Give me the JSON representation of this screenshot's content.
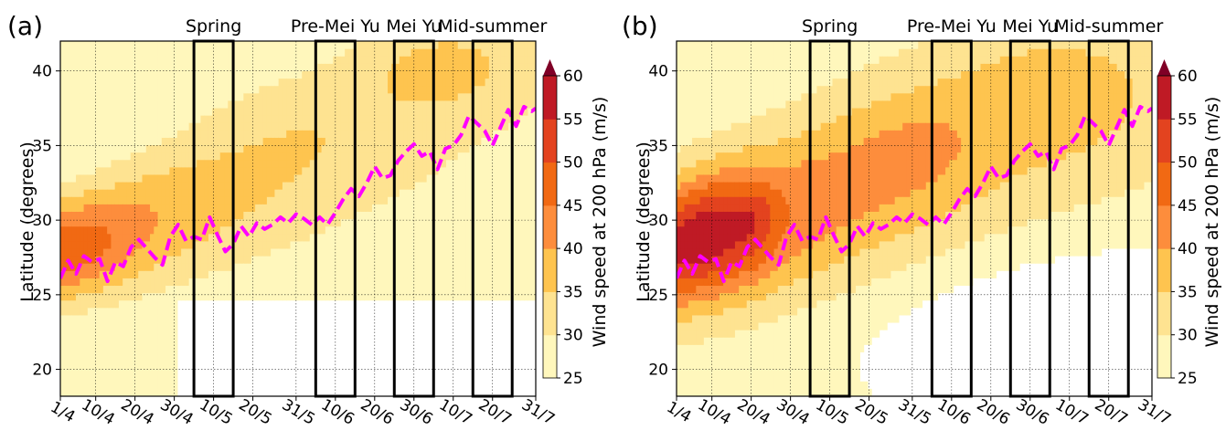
{
  "chart_data": [
    {
      "panel_label": "(a)",
      "type": "heatmap",
      "title": "",
      "xlabel": "",
      "ylabel": "Latitude (degrees)",
      "x_ticks": [
        "1/4",
        "10/4",
        "20/4",
        "30/4",
        "10/5",
        "20/5",
        "31/5",
        "10/6",
        "20/6",
        "30/6",
        "10/7",
        "20/7",
        "31/7"
      ],
      "x_tick_days": [
        0,
        9,
        19,
        29,
        39,
        49,
        60,
        70,
        80,
        90,
        100,
        110,
        121
      ],
      "xlim": [
        0,
        121
      ],
      "y_ticks": [
        20,
        25,
        30,
        35,
        40
      ],
      "ylim": [
        18.2,
        42
      ],
      "grid": true,
      "colorbar": {
        "label": "Wind speed at 200 hPa (m/s)",
        "levels": [
          25,
          30,
          35,
          40,
          45,
          50,
          55,
          60
        ],
        "colors": [
          "#fff7bc",
          "#fee391",
          "#fec44f",
          "#fd8d3c",
          "#f16913",
          "#e3431f",
          "#bf1a25",
          "#800026"
        ],
        "extend": "max"
      },
      "periods": [
        {
          "label": "Spring",
          "start_day": 34,
          "end_day": 44
        },
        {
          "label": "Pre-Mei Yu",
          "start_day": 65,
          "end_day": 75
        },
        {
          "label": "Mei Yu",
          "start_day": 85,
          "end_day": 95
        },
        {
          "label": "Mid-summer",
          "start_day": 105,
          "end_day": 115
        }
      ],
      "jet_axis": {
        "name": "",
        "color": "#ff00ff",
        "days": [
          0,
          2,
          4,
          6,
          8,
          10,
          12,
          14,
          16,
          18,
          20,
          22,
          24,
          26,
          28,
          30,
          32,
          34,
          36,
          38,
          40,
          42,
          44,
          46,
          48,
          50,
          52,
          54,
          56,
          58,
          60,
          62,
          64,
          66,
          68,
          70,
          72,
          74,
          76,
          78,
          80,
          82,
          84,
          86,
          88,
          90,
          92,
          94,
          96,
          98,
          100,
          102,
          104,
          106,
          108,
          110,
          112,
          114,
          116,
          118,
          120,
          121
        ],
        "latitude": [
          26.1,
          27.3,
          26.4,
          27.6,
          27.2,
          27.4,
          25.9,
          27.2,
          26.9,
          28.2,
          28.7,
          28.1,
          27.5,
          27.0,
          28.9,
          29.7,
          28.6,
          28.9,
          28.7,
          30.2,
          29.0,
          27.9,
          28.4,
          29.6,
          28.9,
          29.8,
          29.4,
          29.7,
          30.2,
          29.8,
          30.4,
          30.1,
          29.7,
          30.2,
          29.7,
          30.5,
          31.4,
          32.1,
          31.6,
          32.5,
          33.6,
          32.8,
          33.0,
          34.0,
          34.6,
          35.1,
          34.3,
          34.6,
          33.4,
          34.8,
          35.0,
          35.7,
          37.0,
          36.5,
          36.0,
          35.0,
          36.2,
          37.4,
          36.3,
          37.6,
          37.3,
          37.5
        ]
      }
    },
    {
      "panel_label": "(b)",
      "type": "heatmap",
      "title": "",
      "xlabel": "",
      "ylabel": "Latitude (degrees)",
      "x_ticks": [
        "1/4",
        "10/4",
        "20/4",
        "30/4",
        "10/5",
        "20/5",
        "31/5",
        "10/6",
        "20/6",
        "30/6",
        "10/7",
        "20/7",
        "31/7"
      ],
      "x_tick_days": [
        0,
        9,
        19,
        29,
        39,
        49,
        60,
        70,
        80,
        90,
        100,
        110,
        121
      ],
      "xlim": [
        0,
        121
      ],
      "y_ticks": [
        20,
        25,
        30,
        35,
        40
      ],
      "ylim": [
        18.2,
        42
      ],
      "grid": true,
      "colorbar": {
        "label": "Wind speed at 200 hPa (m/s)",
        "levels": [
          25,
          30,
          35,
          40,
          45,
          50,
          55,
          60
        ],
        "colors": [
          "#fff7bc",
          "#fee391",
          "#fec44f",
          "#fd8d3c",
          "#f16913",
          "#e3431f",
          "#bf1a25",
          "#800026"
        ],
        "extend": "max"
      },
      "periods": [
        {
          "label": "Spring",
          "start_day": 34,
          "end_day": 44
        },
        {
          "label": "Pre-Mei Yu",
          "start_day": 65,
          "end_day": 75
        },
        {
          "label": "Mei Yu",
          "start_day": 85,
          "end_day": 95
        },
        {
          "label": "Mid-summer",
          "start_day": 105,
          "end_day": 115
        }
      ],
      "jet_axis": {
        "name": "",
        "color": "#ff00ff",
        "days": [
          0,
          2,
          4,
          6,
          8,
          10,
          12,
          14,
          16,
          18,
          20,
          22,
          24,
          26,
          28,
          30,
          32,
          34,
          36,
          38,
          40,
          42,
          44,
          46,
          48,
          50,
          52,
          54,
          56,
          58,
          60,
          62,
          64,
          66,
          68,
          70,
          72,
          74,
          76,
          78,
          80,
          82,
          84,
          86,
          88,
          90,
          92,
          94,
          96,
          98,
          100,
          102,
          104,
          106,
          108,
          110,
          112,
          114,
          116,
          118,
          120,
          121
        ],
        "latitude": [
          26.1,
          27.3,
          26.4,
          27.6,
          27.2,
          27.4,
          25.9,
          27.2,
          26.9,
          28.2,
          28.7,
          28.1,
          27.5,
          27.0,
          28.9,
          29.7,
          28.6,
          28.9,
          28.7,
          30.2,
          29.0,
          27.9,
          28.4,
          29.6,
          28.9,
          29.8,
          29.4,
          29.7,
          30.2,
          29.8,
          30.4,
          30.1,
          29.7,
          30.2,
          29.7,
          30.5,
          31.4,
          32.1,
          31.6,
          32.5,
          33.6,
          32.8,
          33.0,
          34.0,
          34.6,
          35.1,
          34.3,
          34.6,
          33.4,
          34.8,
          35.0,
          35.7,
          37.0,
          36.5,
          36.0,
          35.0,
          36.2,
          37.4,
          36.3,
          37.6,
          37.3,
          37.5
        ]
      }
    }
  ]
}
